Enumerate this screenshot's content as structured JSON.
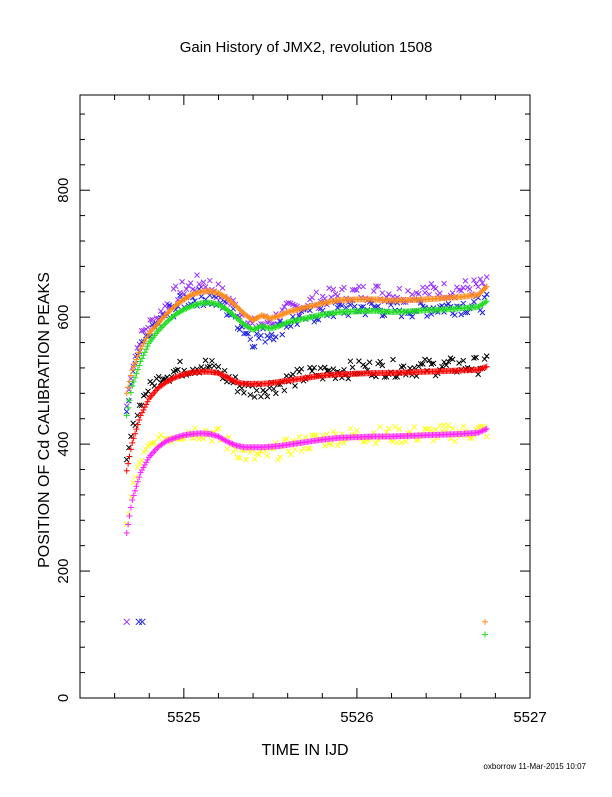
{
  "chart_data": {
    "type": "scatter",
    "title": "Gain History of JMX2, revolution 1508",
    "xlabel": "TIME IN IJD",
    "ylabel": "POSITION OF Cd CALIBRATION PEAKS",
    "xlim": [
      5524.4,
      5527.0
    ],
    "ylim": [
      0,
      950
    ],
    "x_ticks": [
      5525,
      5526,
      5527
    ],
    "x_tick_labels": [
      "5525",
      "5526",
      "5527"
    ],
    "y_ticks": [
      0,
      200,
      400,
      600,
      800
    ],
    "y_tick_labels": [
      "0",
      "200",
      "400",
      "600",
      "800"
    ],
    "grid": false,
    "footer": "oxborrow 11-Mar-2015 10:07",
    "colors": {
      "purple": "#9b30ff",
      "blue": "#1e22e6",
      "orange": "#ff8c1a",
      "green": "#22dd22",
      "black": "#000000",
      "red": "#ff0000",
      "yellow": "#ffff22",
      "magenta": "#ff22ff"
    },
    "series": [
      {
        "marker": "x",
        "color": "#9b30ff",
        "style": "scatter",
        "x": [
          5524.67,
          5524.7,
          5524.75,
          5524.8,
          5524.85,
          5524.9,
          5524.95,
          5525.0,
          5525.05,
          5525.1,
          5525.15,
          5525.2,
          5525.25,
          5525.3,
          5525.35,
          5525.4,
          5525.45,
          5525.5,
          5525.55,
          5525.6,
          5525.7,
          5525.8,
          5525.9,
          5526.0,
          5526.1,
          5526.2,
          5526.3,
          5526.4,
          5526.5,
          5526.6,
          5526.7,
          5526.75
        ],
        "y": [
          460,
          520,
          570,
          590,
          600,
          620,
          635,
          645,
          650,
          655,
          650,
          640,
          630,
          615,
          600,
          585,
          590,
          595,
          600,
          610,
          620,
          630,
          635,
          638,
          640,
          636,
          638,
          640,
          642,
          645,
          648,
          650
        ]
      },
      {
        "marker": "x",
        "color": "#1e22e6",
        "style": "scatter",
        "x": [
          5524.67,
          5524.7,
          5524.75,
          5524.8,
          5524.85,
          5524.9,
          5524.95,
          5525.0,
          5525.05,
          5525.1,
          5525.15,
          5525.2,
          5525.25,
          5525.3,
          5525.35,
          5525.4,
          5525.45,
          5525.5,
          5525.55,
          5525.6,
          5525.7,
          5525.8,
          5525.9,
          5526.0,
          5526.1,
          5526.2,
          5526.3,
          5526.4,
          5526.5,
          5526.6,
          5526.7,
          5526.75
        ],
        "y": [
          445,
          505,
          550,
          575,
          590,
          605,
          615,
          625,
          630,
          632,
          630,
          622,
          612,
          598,
          580,
          565,
          570,
          575,
          582,
          592,
          600,
          608,
          612,
          614,
          615,
          612,
          613,
          614,
          616,
          618,
          620,
          622
        ]
      },
      {
        "marker": "x",
        "color": "#000000",
        "style": "scatter",
        "x": [
          5524.67,
          5524.7,
          5524.75,
          5524.8,
          5524.85,
          5524.9,
          5524.95,
          5525.0,
          5525.05,
          5525.1,
          5525.15,
          5525.2,
          5525.25,
          5525.3,
          5525.35,
          5525.4,
          5525.45,
          5525.5,
          5525.55,
          5525.6,
          5525.7,
          5525.8,
          5525.9,
          5526.0,
          5526.1,
          5526.2,
          5526.3,
          5526.4,
          5526.5,
          5526.6,
          5526.7,
          5526.75
        ],
        "y": [
          370,
          420,
          465,
          490,
          502,
          510,
          515,
          520,
          522,
          524,
          522,
          515,
          505,
          495,
          488,
          485,
          487,
          490,
          495,
          500,
          508,
          512,
          516,
          518,
          520,
          519,
          520,
          521,
          522,
          523,
          524,
          525
        ]
      },
      {
        "marker": "x",
        "color": "#ffff22",
        "style": "scatter",
        "x": [
          5524.67,
          5524.7,
          5524.75,
          5524.8,
          5524.85,
          5524.9,
          5524.95,
          5525.0,
          5525.05,
          5525.1,
          5525.15,
          5525.2,
          5525.25,
          5525.3,
          5525.35,
          5525.4,
          5525.45,
          5525.5,
          5525.55,
          5525.6,
          5525.7,
          5525.8,
          5525.9,
          5526.0,
          5526.1,
          5526.2,
          5526.3,
          5526.4,
          5526.5,
          5526.6,
          5526.7,
          5526.75
        ],
        "y": [
          270,
          330,
          375,
          395,
          405,
          410,
          415,
          418,
          420,
          420,
          418,
          412,
          402,
          392,
          385,
          380,
          382,
          386,
          390,
          395,
          402,
          408,
          412,
          414,
          415,
          414,
          415,
          416,
          417,
          418,
          420,
          422
        ]
      },
      {
        "marker": "+",
        "color": "#ff8c1a",
        "style": "line",
        "x": [
          5524.67,
          5524.7,
          5524.75,
          5524.8,
          5524.85,
          5524.9,
          5524.95,
          5525.0,
          5525.05,
          5525.1,
          5525.15,
          5525.2,
          5525.25,
          5525.3,
          5525.35,
          5525.4,
          5525.45,
          5525.5,
          5525.55,
          5525.6,
          5525.7,
          5525.8,
          5525.9,
          5526.0,
          5526.1,
          5526.2,
          5526.3,
          5526.4,
          5526.5,
          5526.6,
          5526.7,
          5526.75
        ],
        "y": [
          480,
          515,
          550,
          575,
          590,
          605,
          618,
          628,
          636,
          640,
          641,
          638,
          630,
          618,
          605,
          595,
          603,
          598,
          602,
          608,
          615,
          622,
          627,
          628,
          628,
          626,
          627,
          628,
          630,
          632,
          635,
          648
        ]
      },
      {
        "marker": "+",
        "color": "#22dd22",
        "style": "line",
        "x": [
          5524.67,
          5524.7,
          5524.75,
          5524.8,
          5524.85,
          5524.9,
          5524.95,
          5525.0,
          5525.05,
          5525.1,
          5525.15,
          5525.2,
          5525.25,
          5525.3,
          5525.35,
          5525.4,
          5525.45,
          5525.5,
          5525.55,
          5525.6,
          5525.7,
          5525.8,
          5525.9,
          5526.0,
          5526.1,
          5526.2,
          5526.3,
          5526.4,
          5526.5,
          5526.6,
          5526.7,
          5526.75
        ],
        "y": [
          445,
          490,
          530,
          560,
          578,
          592,
          604,
          612,
          618,
          622,
          623,
          620,
          612,
          600,
          588,
          580,
          586,
          582,
          586,
          592,
          598,
          604,
          608,
          609,
          610,
          608,
          609,
          611,
          612,
          614,
          616,
          625
        ]
      },
      {
        "marker": "+",
        "color": "#ff0000",
        "style": "line",
        "x": [
          5524.67,
          5524.7,
          5524.75,
          5524.8,
          5524.85,
          5524.9,
          5524.95,
          5525.0,
          5525.05,
          5525.1,
          5525.15,
          5525.2,
          5525.25,
          5525.3,
          5525.35,
          5525.4,
          5525.45,
          5525.5,
          5525.55,
          5525.6,
          5525.7,
          5525.8,
          5525.9,
          5526.0,
          5526.1,
          5526.2,
          5526.3,
          5526.4,
          5526.5,
          5526.6,
          5526.7,
          5526.75
        ],
        "y": [
          358,
          400,
          445,
          472,
          488,
          498,
          505,
          510,
          513,
          514,
          514,
          512,
          505,
          498,
          495,
          495,
          495,
          496,
          498,
          500,
          504,
          508,
          510,
          511,
          512,
          512,
          513,
          514,
          515,
          516,
          517,
          522
        ]
      },
      {
        "marker": "+",
        "color": "#ff22ff",
        "style": "line",
        "x": [
          5524.67,
          5524.7,
          5524.75,
          5524.8,
          5524.85,
          5524.9,
          5524.95,
          5525.0,
          5525.05,
          5525.1,
          5525.15,
          5525.2,
          5525.25,
          5525.3,
          5525.35,
          5525.4,
          5525.45,
          5525.5,
          5525.55,
          5525.6,
          5525.7,
          5525.8,
          5525.9,
          5526.0,
          5526.1,
          5526.2,
          5526.3,
          5526.4,
          5526.5,
          5526.6,
          5526.7,
          5526.75
        ],
        "y": [
          260,
          310,
          355,
          380,
          395,
          405,
          410,
          414,
          416,
          417,
          416,
          412,
          404,
          398,
          395,
          395,
          395,
          396,
          397,
          399,
          403,
          407,
          410,
          411,
          412,
          412,
          413,
          414,
          415,
          416,
          418,
          424
        ]
      }
    ],
    "outliers": [
      {
        "marker": "x",
        "color": "#9b30ff",
        "x": 5524.67,
        "y": 120
      },
      {
        "marker": "x",
        "color": "#1e22e6",
        "x": 5524.74,
        "y": 120
      },
      {
        "marker": "x",
        "color": "#1e22e6",
        "x": 5524.76,
        "y": 120
      },
      {
        "marker": "+",
        "color": "#ff8c1a",
        "x": 5526.74,
        "y": 120
      },
      {
        "marker": "+",
        "color": "#22dd22",
        "x": 5526.74,
        "y": 100
      }
    ]
  }
}
